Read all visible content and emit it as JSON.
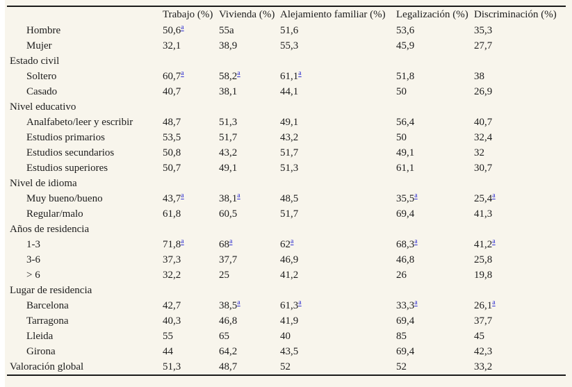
{
  "page": {
    "background": "#f8f5ec",
    "text_color": "#1c1c1c",
    "rule_color": "#1a1a1a",
    "link_color": "#2e2ecf",
    "footnote_marker": "a"
  },
  "table": {
    "columns": [
      "",
      "Trabajo (%)",
      "Vivienda (%)",
      "Alejamiento familiar (%)",
      "Legalización (%)",
      "Discriminación (%)"
    ],
    "rows": [
      {
        "label": "Hombre",
        "indent": true,
        "cells": [
          "50,6^a",
          "55a",
          "51,6",
          "53,6",
          "35,3"
        ]
      },
      {
        "label": "Mujer",
        "indent": true,
        "cells": [
          "32,1",
          "38,9",
          "55,3",
          "45,9",
          "27,7"
        ]
      },
      {
        "label": "Estado civil",
        "indent": false,
        "cells": [
          "",
          "",
          "",
          "",
          ""
        ]
      },
      {
        "label": "Soltero",
        "indent": true,
        "cells": [
          "60,7^a",
          "58,2^a",
          "61,1^a",
          "51,8",
          "38"
        ]
      },
      {
        "label": "Casado",
        "indent": true,
        "cells": [
          "40,7",
          "38,1",
          "44,1",
          "50",
          "26,9"
        ]
      },
      {
        "label": "Nivel educativo",
        "indent": false,
        "cells": [
          "",
          "",
          "",
          "",
          ""
        ]
      },
      {
        "label": "Analfabeto/leer y escribir",
        "indent": true,
        "cells": [
          "48,7",
          "51,3",
          "49,1",
          "56,4",
          "40,7"
        ]
      },
      {
        "label": "Estudios primarios",
        "indent": true,
        "cells": [
          "53,5",
          "51,7",
          "43,2",
          "50",
          "32,4"
        ]
      },
      {
        "label": "Estudios secundarios",
        "indent": true,
        "cells": [
          "50,8",
          "43,2",
          "51,7",
          "49,1",
          "32"
        ]
      },
      {
        "label": "Estudios superiores",
        "indent": true,
        "cells": [
          "50,7",
          "49,1",
          "51,3",
          "61,1",
          "30,7"
        ]
      },
      {
        "label": "Nivel de idioma",
        "indent": false,
        "cells": [
          "",
          "",
          "",
          "",
          ""
        ]
      },
      {
        "label": "Muy bueno/bueno",
        "indent": true,
        "cells": [
          "43,7^a",
          "38,1^a",
          "48,5",
          "35,5^a",
          "25,4^a"
        ]
      },
      {
        "label": "Regular/malo",
        "indent": true,
        "cells": [
          "61,8",
          "60,5",
          "51,7",
          "69,4",
          "41,3"
        ]
      },
      {
        "label": "Años de residencia",
        "indent": false,
        "cells": [
          "",
          "",
          "",
          "",
          ""
        ]
      },
      {
        "label": "1-3",
        "indent": true,
        "cells": [
          "71,8^a",
          "68^a",
          "62^a",
          "68,3^a",
          "41,2^a"
        ]
      },
      {
        "label": "3-6",
        "indent": true,
        "cells": [
          "37,3",
          "37,7",
          "46,9",
          "46,8",
          "25,8"
        ]
      },
      {
        "label": "> 6",
        "indent": true,
        "cells": [
          "32,2",
          "25",
          "41,2",
          "26",
          "19,8"
        ]
      },
      {
        "label": "Lugar de residencia",
        "indent": false,
        "cells": [
          "",
          "",
          "",
          "",
          ""
        ]
      },
      {
        "label": "Barcelona",
        "indent": true,
        "cells": [
          "42,7",
          "38,5^a",
          "61,3^a",
          "33,3^a",
          "26,1^a"
        ]
      },
      {
        "label": "Tarragona",
        "indent": true,
        "cells": [
          "40,3",
          "46,8",
          "41,9",
          "69,4",
          "37,7"
        ]
      },
      {
        "label": "Lleida",
        "indent": true,
        "cells": [
          "55",
          "65",
          "40",
          "85",
          "45"
        ]
      },
      {
        "label": "Girona",
        "indent": true,
        "cells": [
          "44",
          "64,2",
          "43,5",
          "69,4",
          "42,3"
        ]
      },
      {
        "label": "Valoración global",
        "indent": false,
        "cells": [
          "51,3",
          "48,7",
          "52",
          "52",
          "33,2"
        ]
      }
    ]
  }
}
